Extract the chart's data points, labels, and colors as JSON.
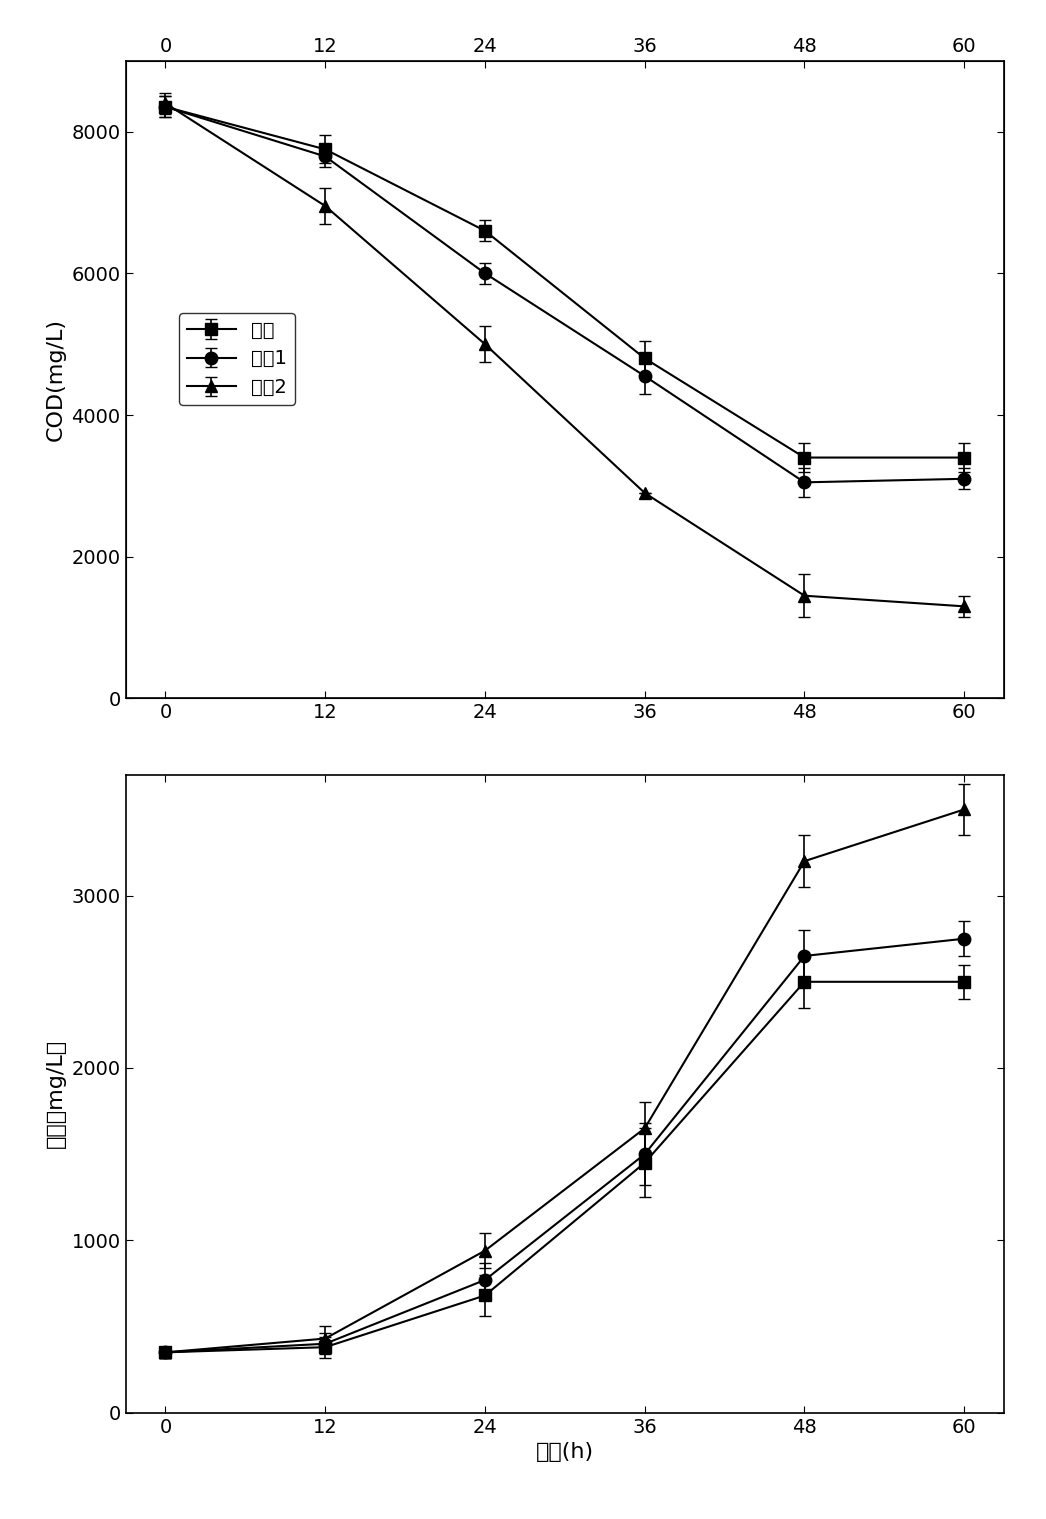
{
  "x": [
    0,
    12,
    24,
    36,
    48,
    60
  ],
  "cod": {
    "dan_jun": [
      8350,
      7750,
      6600,
      4800,
      3400,
      3400
    ],
    "hun_jun1": [
      8350,
      7650,
      6000,
      4550,
      3050,
      3100
    ],
    "hun_jun2": [
      8400,
      6950,
      5000,
      2900,
      1450,
      1300
    ]
  },
  "cod_err": {
    "dan_jun": [
      150,
      200,
      150,
      250,
      200,
      200
    ],
    "hun_jun1": [
      150,
      150,
      150,
      250,
      200,
      150
    ],
    "hun_jun2": [
      150,
      250,
      250,
      0,
      300,
      150
    ]
  },
  "dw": {
    "dan_jun": [
      350,
      380,
      680,
      1450,
      2500,
      2500
    ],
    "hun_jun1": [
      350,
      400,
      770,
      1500,
      2650,
      2750
    ],
    "hun_jun2": [
      350,
      430,
      940,
      1650,
      3200,
      3500
    ]
  },
  "dw_err": {
    "dan_jun": [
      30,
      60,
      120,
      200,
      150,
      100
    ],
    "hun_jun1": [
      30,
      60,
      100,
      180,
      150,
      100
    ],
    "hun_jun2": [
      30,
      70,
      100,
      150,
      150,
      150
    ]
  },
  "cod_ylim": [
    0,
    9000
  ],
  "dw_ylim": [
    0,
    3700
  ],
  "cod_yticks": [
    0,
    2000,
    4000,
    6000,
    8000
  ],
  "dw_yticks": [
    0,
    1000,
    2000,
    3000
  ],
  "xticks": [
    0,
    12,
    24,
    36,
    48,
    60
  ],
  "ylabel_top": "COD(mg/L)",
  "ylabel_bottom": "干重（mg/L）",
  "xlabel": "时间(h)",
  "legend_labels": [
    "单菌",
    "混菌1",
    "混菌2"
  ],
  "marker_styles": [
    "s",
    "o",
    "^"
  ],
  "line_color": "#000000",
  "background_color": "#ffffff",
  "fontsize_label": 16,
  "fontsize_tick": 14,
  "fontsize_legend": 14
}
